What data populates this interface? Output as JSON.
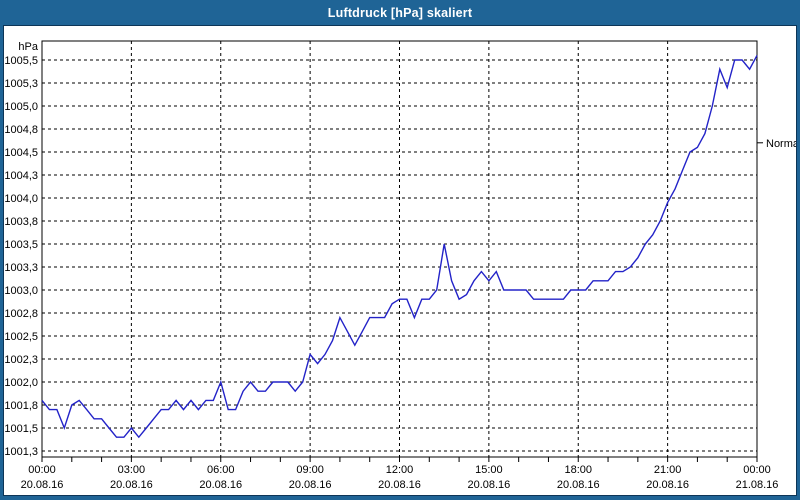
{
  "window": {
    "title": "Luftdruck [hPa] skaliert"
  },
  "colors": {
    "frame": "#1f6496",
    "frame_border": "#0d3557",
    "panel_bg": "#ffffff",
    "grid": "#000000",
    "line": "#2323c8",
    "title_text": "#ffffff"
  },
  "chart_data": {
    "type": "line",
    "title": "Luftdruck [hPa] skaliert",
    "xlabel": "",
    "ylabel": "hPa",
    "grid": true,
    "legend": null,
    "ylim": [
      1001.19,
      1005.71
    ],
    "x_range_minutes": [
      0,
      1440
    ],
    "y_ticks": [
      {
        "value": 1005.5,
        "label": "1005,5"
      },
      {
        "value": 1005.25,
        "label": "1005,3"
      },
      {
        "value": 1005.0,
        "label": "1005,0"
      },
      {
        "value": 1004.75,
        "label": "1004,8"
      },
      {
        "value": 1004.5,
        "label": "1004,5"
      },
      {
        "value": 1004.25,
        "label": "1004,3"
      },
      {
        "value": 1004.0,
        "label": "1004,0"
      },
      {
        "value": 1003.75,
        "label": "1003,8"
      },
      {
        "value": 1003.5,
        "label": "1003,5"
      },
      {
        "value": 1003.25,
        "label": "1003,3"
      },
      {
        "value": 1003.0,
        "label": "1003,0"
      },
      {
        "value": 1002.75,
        "label": "1002,8"
      },
      {
        "value": 1002.5,
        "label": "1002,5"
      },
      {
        "value": 1002.25,
        "label": "1002,3"
      },
      {
        "value": 1002.0,
        "label": "1002,0"
      },
      {
        "value": 1001.75,
        "label": "1001,8"
      },
      {
        "value": 1001.5,
        "label": "1001,5"
      },
      {
        "value": 1001.25,
        "label": "1001,3"
      }
    ],
    "x_ticks": [
      {
        "minutes": 0,
        "time": "00:00",
        "date": "20.08.16"
      },
      {
        "minutes": 180,
        "time": "03:00",
        "date": "20.08.16"
      },
      {
        "minutes": 360,
        "time": "06:00",
        "date": "20.08.16"
      },
      {
        "minutes": 540,
        "time": "09:00",
        "date": "20.08.16"
      },
      {
        "minutes": 720,
        "time": "12:00",
        "date": "20.08.16"
      },
      {
        "minutes": 900,
        "time": "15:00",
        "date": "20.08.16"
      },
      {
        "minutes": 1080,
        "time": "18:00",
        "date": "20.08.16"
      },
      {
        "minutes": 1260,
        "time": "21:00",
        "date": "20.08.16"
      },
      {
        "minutes": 1440,
        "time": "00:00",
        "date": "21.08.16"
      }
    ],
    "annotations": [
      {
        "label": "Normal",
        "value": 1004.6,
        "position": "right"
      }
    ],
    "series": [
      {
        "name": "Luftdruck",
        "unit": "hPa",
        "start_time": "00:00",
        "interval_minutes": 15,
        "values": [
          1001.8,
          1001.7,
          1001.7,
          1001.5,
          1001.75,
          1001.8,
          1001.7,
          1001.6,
          1001.6,
          1001.5,
          1001.4,
          1001.4,
          1001.5,
          1001.4,
          1001.5,
          1001.6,
          1001.7,
          1001.7,
          1001.8,
          1001.7,
          1001.8,
          1001.7,
          1001.8,
          1001.8,
          1002.0,
          1001.7,
          1001.7,
          1001.9,
          1002.0,
          1001.9,
          1001.9,
          1002.0,
          1002.0,
          1002.0,
          1001.9,
          1002.0,
          1002.3,
          1002.2,
          1002.3,
          1002.45,
          1002.7,
          1002.55,
          1002.4,
          1002.55,
          1002.7,
          1002.7,
          1002.7,
          1002.85,
          1002.9,
          1002.9,
          1002.7,
          1002.9,
          1002.9,
          1003.0,
          1003.5,
          1003.1,
          1002.9,
          1002.95,
          1003.1,
          1003.2,
          1003.1,
          1003.2,
          1003.0,
          1003.0,
          1003.0,
          1003.0,
          1002.9,
          1002.9,
          1002.9,
          1002.9,
          1002.9,
          1003.0,
          1003.0,
          1003.0,
          1003.1,
          1003.1,
          1003.1,
          1003.2,
          1003.2,
          1003.25,
          1003.35,
          1003.5,
          1003.6,
          1003.75,
          1003.95,
          1004.1,
          1004.3,
          1004.5,
          1004.55,
          1004.7,
          1005.0,
          1005.4,
          1005.2,
          1005.5,
          1005.5,
          1005.4,
          1005.55
        ]
      }
    ]
  }
}
